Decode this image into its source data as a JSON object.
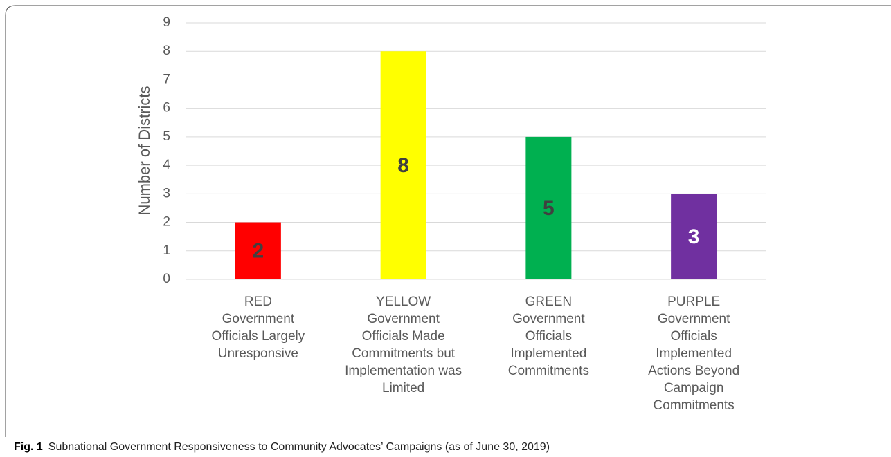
{
  "chart_data": {
    "type": "bar",
    "ylabel": "Number of Districts",
    "categories": [
      "RED\nGovernment\nOfficials Largely\nUnresponsive",
      "YELLOW\nGovernment\nOfficials Made\nCommitments but\nImplementation was\nLimited",
      "GREEN\nGovernment\nOfficials\nImplemented\nCommitments",
      "PURPLE\nGovernment\nOfficials\nImplemented\nActions Beyond\nCampaign\nCommitments"
    ],
    "values": [
      2,
      8,
      5,
      3
    ],
    "colors": [
      "#ff0000",
      "#ffff00",
      "#00b050",
      "#7030a0"
    ],
    "label_colors": [
      "#404040",
      "#404040",
      "#404040",
      "#ffffff"
    ],
    "ylim": [
      0,
      9
    ],
    "yticks": [
      0,
      1,
      2,
      3,
      4,
      5,
      6,
      7,
      8,
      9
    ],
    "grid": true,
    "caption_label": "Fig. 1",
    "caption": "Subnational Government Responsiveness to Community Advocates’ Campaigns (as of June 30, 2019)"
  }
}
